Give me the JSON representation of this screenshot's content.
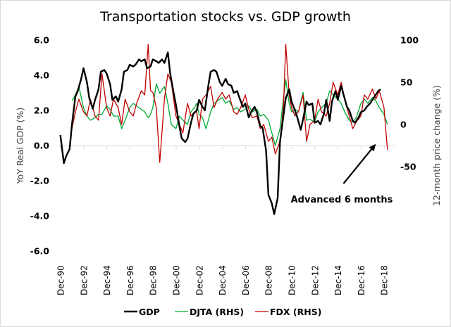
{
  "chart_data": {
    "type": "line",
    "title": "Transportation stocks vs. GDP growth",
    "ylabel": "YoY Real GDP (%)",
    "y2label": "12-month price change (%)",
    "xlabel": "",
    "ylim": [
      -6,
      6
    ],
    "y2lim": [
      -150,
      100
    ],
    "xlim": [
      1990.8,
      2019.9
    ],
    "yticks": [
      "6.0",
      "4.0",
      "2.0",
      "0.0",
      "-2.0",
      "-4.0",
      "-6.0"
    ],
    "ytick_values": [
      6,
      4,
      2,
      0,
      -2,
      -4,
      -6
    ],
    "y2ticks": [
      "100",
      "50",
      "0",
      "-50"
    ],
    "y2tick_values": [
      100,
      50,
      0,
      -50
    ],
    "xticks": [
      "Dec-90",
      "Dec-92",
      "Dec-94",
      "Dec-96",
      "Dec-98",
      "Dec-00",
      "Dec-02",
      "Dec-04",
      "Dec-06",
      "Dec-08",
      "Dec-10",
      "Dec-12",
      "Dec-14",
      "Dec-16",
      "Dec-18"
    ],
    "xtick_values": [
      1990.92,
      1992.92,
      1994.92,
      1996.92,
      1998.92,
      2000.92,
      2002.92,
      2004.92,
      2006.92,
      2008.92,
      2010.92,
      2012.92,
      2014.92,
      2016.92,
      2018.92
    ],
    "grid": false,
    "legend": "bottom",
    "annotation": {
      "text": "Advanced 6 months",
      "arrow_from": [
        2015.4,
        -70
      ],
      "arrow_to": [
        2018.2,
        -23
      ]
    },
    "series": [
      {
        "name": "GDP",
        "axis": "left",
        "color": "#000000",
        "x": [
          1990.9,
          1991.2,
          1991.4,
          1991.7,
          1991.9,
          1992.2,
          1992.4,
          1992.7,
          1992.9,
          1993.2,
          1993.4,
          1993.7,
          1993.9,
          1994.2,
          1994.4,
          1994.7,
          1994.9,
          1995.2,
          1995.4,
          1995.7,
          1995.9,
          1996.2,
          1996.4,
          1996.7,
          1996.9,
          1997.2,
          1997.4,
          1997.7,
          1997.9,
          1998.2,
          1998.4,
          1998.7,
          1998.9,
          1999.2,
          1999.4,
          1999.7,
          1999.9,
          2000.2,
          2000.4,
          2000.7,
          2000.9,
          2001.2,
          2001.4,
          2001.7,
          2001.9,
          2002.2,
          2002.4,
          2002.7,
          2002.9,
          2003.2,
          2003.4,
          2003.7,
          2003.9,
          2004.2,
          2004.4,
          2004.7,
          2004.9,
          2005.2,
          2005.4,
          2005.7,
          2005.9,
          2006.2,
          2006.4,
          2006.7,
          2006.9,
          2007.2,
          2007.4,
          2007.7,
          2007.9,
          2008.2,
          2008.4,
          2008.7,
          2008.9,
          2009.2,
          2009.4,
          2009.7,
          2009.9,
          2010.2,
          2010.4,
          2010.7,
          2010.9,
          2011.2,
          2011.4,
          2011.7,
          2011.9,
          2012.2,
          2012.4,
          2012.7,
          2012.9,
          2013.2,
          2013.4,
          2013.7,
          2013.9,
          2014.2,
          2014.4,
          2014.7,
          2014.9,
          2015.2,
          2015.4,
          2015.7,
          2015.9,
          2016.2,
          2016.4,
          2016.7,
          2016.9,
          2017.2,
          2017.4,
          2017.7,
          2017.9,
          2018.2,
          2018.4,
          2018.6
        ],
        "values": [
          0.6,
          -1.0,
          -0.6,
          -0.2,
          1.2,
          2.8,
          3.1,
          3.8,
          4.4,
          3.6,
          2.7,
          2.1,
          2.6,
          3.2,
          4.2,
          4.3,
          4.1,
          3.5,
          2.6,
          2.8,
          2.5,
          3.2,
          4.2,
          4.3,
          4.6,
          4.5,
          4.6,
          4.9,
          4.8,
          4.9,
          4.4,
          4.5,
          4.9,
          4.8,
          4.7,
          4.9,
          4.7,
          5.3,
          4.1,
          3.0,
          2.3,
          1.1,
          0.4,
          0.2,
          0.4,
          1.3,
          1.8,
          2.0,
          2.6,
          2.2,
          2.0,
          3.4,
          4.2,
          4.3,
          4.2,
          3.6,
          3.4,
          3.8,
          3.5,
          3.4,
          3.0,
          3.1,
          2.7,
          2.2,
          2.4,
          1.6,
          1.9,
          2.2,
          1.9,
          1.1,
          1.0,
          -0.3,
          -2.8,
          -3.3,
          -3.9,
          -3.0,
          0.2,
          1.7,
          2.7,
          3.2,
          2.5,
          2.0,
          1.6,
          0.9,
          1.5,
          2.5,
          2.3,
          2.4,
          1.3,
          1.4,
          1.2,
          1.8,
          2.6,
          1.4,
          2.5,
          3.1,
          2.6,
          3.4,
          2.9,
          2.2,
          2.0,
          1.4,
          1.3,
          1.6,
          1.9,
          2.0,
          2.2,
          2.4,
          2.6,
          2.9,
          3.1,
          3.2
        ]
      },
      {
        "name": "DJTA (RHS)",
        "axis": "right",
        "color": "#00a832",
        "x": [
          1991.9,
          1992.2,
          1992.5,
          1992.9,
          1993.2,
          1993.5,
          1993.9,
          1994.2,
          1994.5,
          1994.9,
          1995.2,
          1995.5,
          1995.9,
          1996.2,
          1996.5,
          1996.9,
          1997.2,
          1997.5,
          1997.9,
          1998.2,
          1998.5,
          1998.7,
          1998.9,
          1999.2,
          1999.5,
          1999.9,
          2000.2,
          2000.5,
          2000.9,
          2001.2,
          2001.5,
          2001.9,
          2002.2,
          2002.5,
          2002.7,
          2002.9,
          2003.2,
          2003.5,
          2003.9,
          2004.2,
          2004.5,
          2004.9,
          2005.2,
          2005.5,
          2005.9,
          2006.2,
          2006.5,
          2006.9,
          2007.2,
          2007.5,
          2007.9,
          2008.2,
          2008.5,
          2008.9,
          2009.2,
          2009.5,
          2009.9,
          2010.2,
          2010.4,
          2010.7,
          2010.9,
          2011.2,
          2011.5,
          2011.9,
          2012.2,
          2012.5,
          2012.9,
          2013.2,
          2013.5,
          2013.9,
          2014.2,
          2014.5,
          2014.9,
          2015.2,
          2015.5,
          2015.9,
          2016.2,
          2016.5,
          2016.9,
          2017.2,
          2017.5,
          2017.9,
          2018.2,
          2018.5,
          2018.9,
          2019.2
        ],
        "values": [
          28,
          35,
          45,
          20,
          10,
          5,
          8,
          12,
          12,
          22,
          18,
          10,
          10,
          -5,
          5,
          20,
          25,
          22,
          18,
          15,
          8,
          12,
          20,
          48,
          37,
          45,
          25,
          0,
          -5,
          10,
          5,
          0,
          15,
          20,
          25,
          12,
          8,
          -5,
          15,
          25,
          28,
          32,
          25,
          28,
          18,
          20,
          15,
          18,
          22,
          15,
          18,
          10,
          12,
          5,
          -10,
          -25,
          -5,
          30,
          53,
          25,
          15,
          18,
          15,
          38,
          5,
          6,
          3,
          15,
          20,
          25,
          40,
          35,
          30,
          25,
          15,
          5,
          3,
          8,
          25,
          30,
          25,
          32,
          28,
          20,
          12,
          0
        ]
      },
      {
        "name": "FDX (RHS)",
        "axis": "right",
        "color": "#c00000",
        "x": [
          1991.9,
          1992.2,
          1992.5,
          1992.9,
          1993.2,
          1993.5,
          1993.9,
          1994.2,
          1994.5,
          1994.9,
          1995.2,
          1995.5,
          1995.9,
          1996.2,
          1996.5,
          1996.9,
          1997.2,
          1997.5,
          1997.9,
          1998.2,
          1998.5,
          1998.7,
          1998.9,
          1999.2,
          1999.5,
          1999.9,
          2000.2,
          2000.5,
          2000.9,
          2001.2,
          2001.5,
          2001.9,
          2002.2,
          2002.5,
          2002.7,
          2002.9,
          2003.2,
          2003.5,
          2003.9,
          2004.2,
          2004.5,
          2004.9,
          2005.2,
          2005.5,
          2005.9,
          2006.2,
          2006.5,
          2006.9,
          2007.2,
          2007.5,
          2007.9,
          2008.2,
          2008.5,
          2008.9,
          2009.2,
          2009.5,
          2009.9,
          2010.2,
          2010.4,
          2010.7,
          2010.9,
          2011.2,
          2011.5,
          2011.9,
          2012.2,
          2012.5,
          2012.9,
          2013.2,
          2013.5,
          2013.9,
          2014.2,
          2014.5,
          2014.9,
          2015.2,
          2015.5,
          2015.9,
          2016.2,
          2016.5,
          2016.9,
          2017.2,
          2017.5,
          2017.9,
          2018.2,
          2018.5,
          2018.9,
          2019.2
        ],
        "values": [
          -5,
          15,
          30,
          15,
          10,
          30,
          10,
          5,
          60,
          20,
          10,
          30,
          20,
          0,
          30,
          15,
          10,
          25,
          40,
          35,
          95,
          40,
          38,
          20,
          -45,
          30,
          60,
          50,
          10,
          0,
          -10,
          25,
          10,
          15,
          15,
          -5,
          30,
          35,
          45,
          20,
          30,
          38,
          30,
          35,
          15,
          12,
          20,
          35,
          18,
          8,
          10,
          -5,
          0,
          -20,
          -15,
          -35,
          -20,
          20,
          95,
          35,
          20,
          10,
          15,
          35,
          -20,
          0,
          5,
          30,
          15,
          10,
          25,
          50,
          35,
          50,
          30,
          10,
          -5,
          3,
          10,
          35,
          30,
          42,
          30,
          40,
          20,
          -30
        ]
      }
    ]
  }
}
